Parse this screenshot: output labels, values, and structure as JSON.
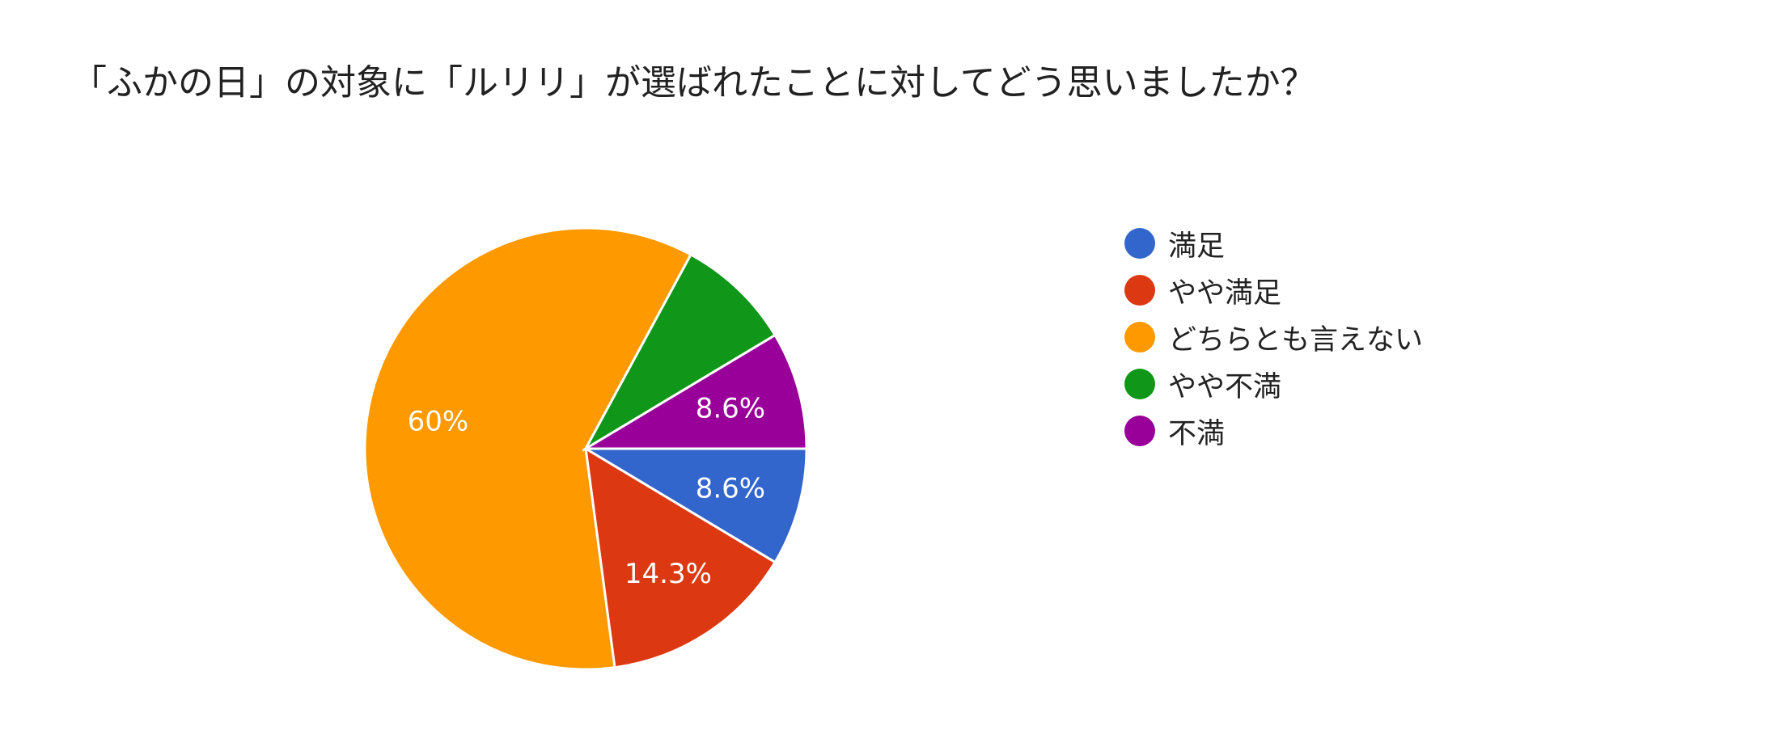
{
  "chart_data": {
    "type": "pie",
    "title": "「ふかの日」の対象に「ルリリ」が選ばれたことに対してどう思いましたか？",
    "slices": [
      {
        "name": "満足",
        "value": 8.6,
        "label": "8.6%",
        "color": "#3366cc"
      },
      {
        "name": "やや満足",
        "value": 14.3,
        "label": "14.3%",
        "color": "#dc3912"
      },
      {
        "name": "どちらとも言えない",
        "value": 60.0,
        "label": "60%",
        "color": "#ff9900"
      },
      {
        "name": "やや不満",
        "value": 8.5,
        "label": "",
        "color": "#109618"
      },
      {
        "name": "不満",
        "value": 8.6,
        "label": "8.6%",
        "color": "#990099"
      }
    ],
    "legend_position": "right"
  }
}
